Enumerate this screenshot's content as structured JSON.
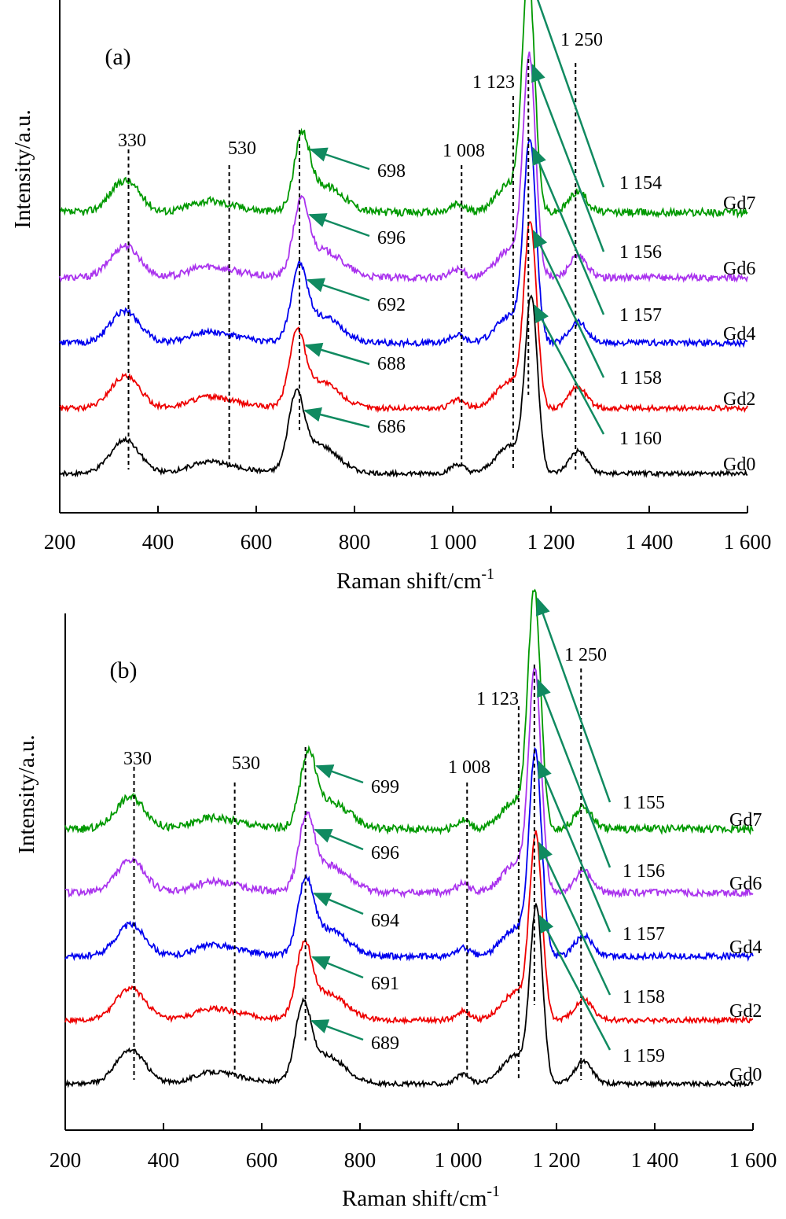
{
  "chart_data": [
    {
      "type": "line",
      "panel_label": "(a)",
      "xlabel": "Raman shift/cm",
      "xlabel_sup": "-1",
      "ylabel": "Intensity/a.u.",
      "xlim": [
        200,
        1600
      ],
      "xticks": [
        200,
        400,
        600,
        800,
        1000,
        1200,
        1400,
        1600
      ],
      "xtick_labels": [
        "200",
        "400",
        "600",
        "800",
        "1 000",
        "1 200",
        "1 400",
        "1 600"
      ],
      "ref_lines": [
        {
          "x": 330,
          "label": "330"
        },
        {
          "x": 530,
          "label": "530"
        },
        {
          "x": 1008,
          "label": "1 008"
        },
        {
          "x": 1123,
          "label": "1 123"
        },
        {
          "x": 1250,
          "label": "1 250"
        }
      ],
      "series": [
        {
          "name": "Gd7",
          "color": "#009900",
          "offset": 4,
          "peak_690": 698,
          "peak_1150": 1154,
          "ann_690": "698",
          "ann_1150": "1 154"
        },
        {
          "name": "Gd6",
          "color": "#aa33ee",
          "offset": 3,
          "peak_690": 696,
          "peak_1150": 1156,
          "ann_690": "696",
          "ann_1150": "1 156"
        },
        {
          "name": "Gd4",
          "color": "#0000ee",
          "offset": 2,
          "peak_690": 692,
          "peak_1150": 1157,
          "ann_690": "692",
          "ann_1150": "1 157"
        },
        {
          "name": "Gd2",
          "color": "#ee0000",
          "offset": 1,
          "peak_690": 688,
          "peak_1150": 1158,
          "ann_690": "688",
          "ann_1150": "1 158"
        },
        {
          "name": "Gd0",
          "color": "#000000",
          "offset": 0,
          "peak_690": 686,
          "peak_1150": 1160,
          "ann_690": "686",
          "ann_1150": "1 160"
        }
      ]
    },
    {
      "type": "line",
      "panel_label": "(b)",
      "xlabel": "Raman shift/cm",
      "xlabel_sup": "-1",
      "ylabel": "Intensity/a.u.",
      "xlim": [
        200,
        1600
      ],
      "xticks": [
        200,
        400,
        600,
        800,
        1000,
        1200,
        1400,
        1600
      ],
      "xtick_labels": [
        "200",
        "400",
        "600",
        "800",
        "1 000",
        "1 200",
        "1 400",
        "1 600"
      ],
      "ref_lines": [
        {
          "x": 330,
          "label": "330"
        },
        {
          "x": 530,
          "label": "530"
        },
        {
          "x": 1008,
          "label": "1 008"
        },
        {
          "x": 1123,
          "label": "1 123"
        },
        {
          "x": 1250,
          "label": "1 250"
        }
      ],
      "series": [
        {
          "name": "Gd7",
          "color": "#009900",
          "offset": 4,
          "peak_690": 699,
          "peak_1150": 1155,
          "ann_690": "699",
          "ann_1150": "1 155"
        },
        {
          "name": "Gd6",
          "color": "#aa33ee",
          "offset": 3,
          "peak_690": 696,
          "peak_1150": 1156,
          "ann_690": "696",
          "ann_1150": "1 156"
        },
        {
          "name": "Gd4",
          "color": "#0000ee",
          "offset": 2,
          "peak_690": 694,
          "peak_1150": 1157,
          "ann_690": "694",
          "ann_1150": "1 157"
        },
        {
          "name": "Gd2",
          "color": "#ee0000",
          "offset": 1,
          "peak_690": 691,
          "peak_1150": 1158,
          "ann_690": "691",
          "ann_1150": "1 158"
        },
        {
          "name": "Gd0",
          "color": "#000000",
          "offset": 0,
          "peak_690": 689,
          "peak_1150": 1159,
          "ann_690": "689",
          "ann_1150": "1 159"
        }
      ]
    }
  ],
  "arrow_color": "#108a60"
}
